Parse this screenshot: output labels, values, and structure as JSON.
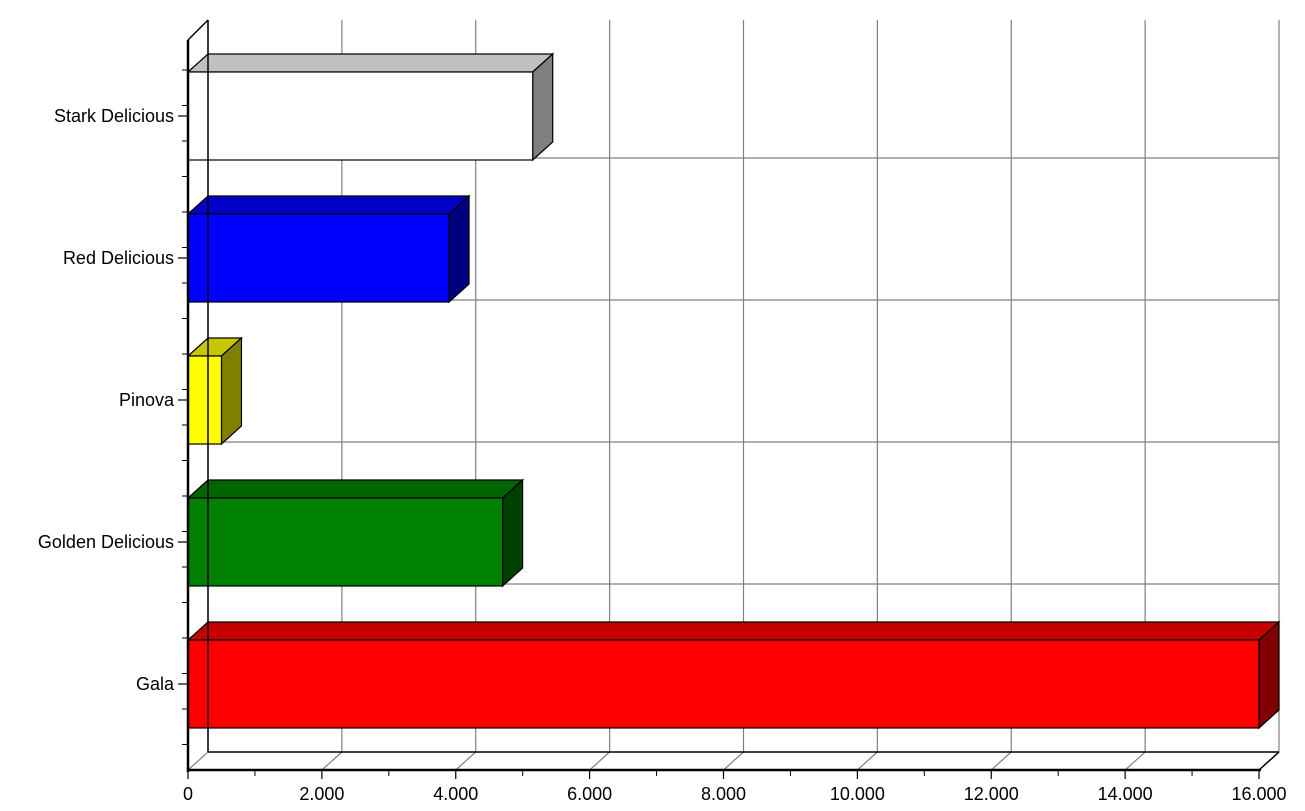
{
  "chart_data": {
    "type": "bar",
    "orientation": "horizontal",
    "style": "3d",
    "categories": [
      "Stark Delicious",
      "Red Delicious",
      "Pinova",
      "Golden Delicious",
      "Gala"
    ],
    "values": [
      5150,
      3900,
      500,
      4700,
      16000
    ],
    "bar_colors": [
      "#ffffff",
      "#0000ff",
      "#ffff00",
      "#008000",
      "#ff0000"
    ],
    "xlim": [
      0,
      16000
    ],
    "x_ticks": [
      0,
      2000,
      4000,
      6000,
      8000,
      10000,
      12000,
      14000,
      16000
    ],
    "x_tick_labels": [
      "0",
      "2.000",
      "4.000",
      "6.000",
      "8.000",
      "10.000",
      "12.000",
      "14.000",
      "16.000"
    ],
    "grid": true,
    "title": "",
    "xlabel": "",
    "ylabel": ""
  }
}
